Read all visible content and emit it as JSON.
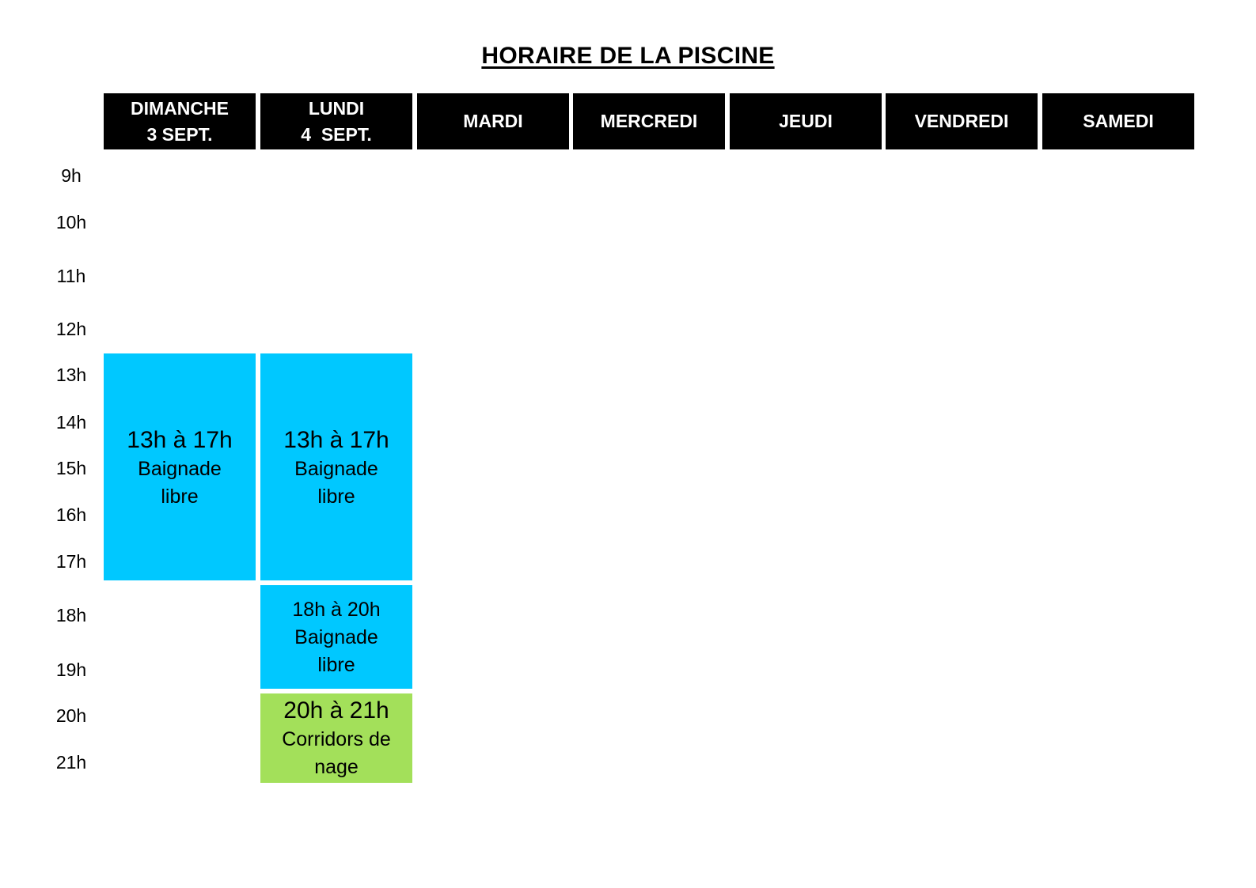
{
  "title": "HORAIRE DE LA PISCINE",
  "days": [
    {
      "line1": "DIMANCHE",
      "line2": "3 SEPT."
    },
    {
      "line1": "LUNDI",
      "line2": "4  SEPT."
    },
    {
      "line1": "MARDI",
      "line2": ""
    },
    {
      "line1": "MERCREDI",
      "line2": ""
    },
    {
      "line1": "JEUDI",
      "line2": ""
    },
    {
      "line1": "VENDREDI",
      "line2": ""
    },
    {
      "line1": "SAMEDI",
      "line2": ""
    }
  ],
  "hours": [
    "9h",
    "10h",
    "11h",
    "12h",
    "13h",
    "14h",
    "15h",
    "16h",
    "17h",
    "18h",
    "19h",
    "20h",
    "21h"
  ],
  "colors": {
    "header_bg": "#000000",
    "header_text": "#ffffff",
    "baignade": "#00c8ff",
    "corridors": "#a3e05a"
  },
  "slots": {
    "sunday_swim": {
      "time": "13h à 17h",
      "desc1": "Baignade",
      "desc2": "libre"
    },
    "monday_swim": {
      "time": "13h à 17h",
      "desc1": "Baignade",
      "desc2": "libre"
    },
    "monday_evening_swim": {
      "time": "18h à 20h",
      "desc1": "Baignade",
      "desc2": "libre"
    },
    "monday_lanes": {
      "time": "20h à 21h",
      "desc1": "Corridors de",
      "desc2": "nage"
    }
  }
}
